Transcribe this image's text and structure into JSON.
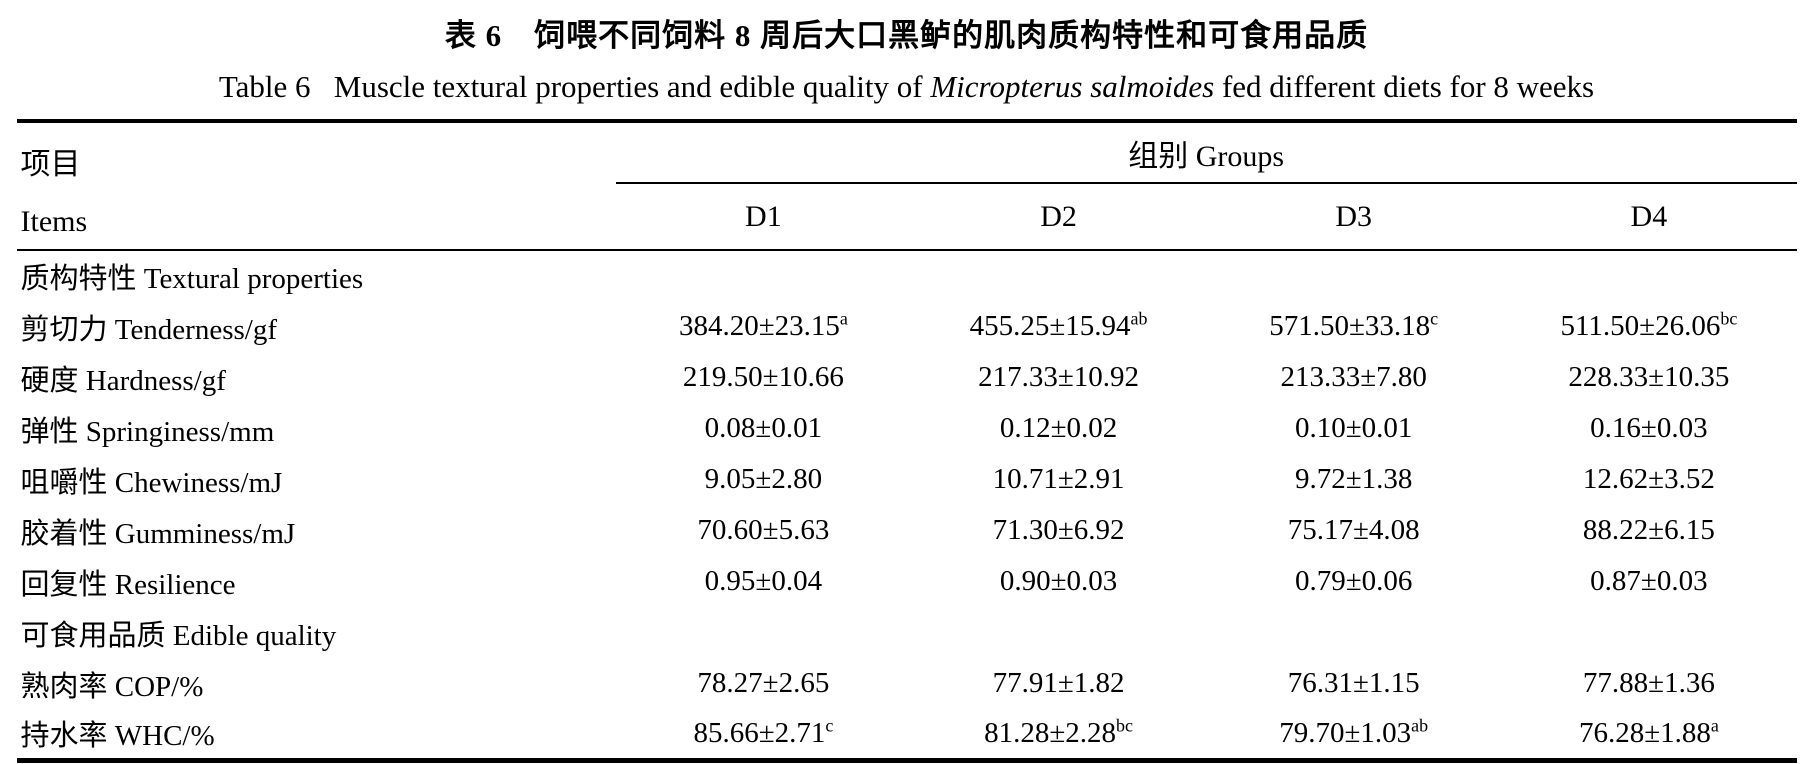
{
  "title": {
    "zh": "表 6　饲喂不同饲料 8 周后大口黑鲈的肌肉质构特性和可食用品质",
    "en_prefix": "Table 6   Muscle textural properties and edible quality of ",
    "en_species": "Micropterus salmoides",
    "en_suffix": " fed different diets for 8 weeks"
  },
  "table": {
    "header": {
      "items_zh": "项目",
      "items_en": "Items",
      "groups_label": "组别 Groups",
      "columns": [
        "D1",
        "D2",
        "D3",
        "D4"
      ]
    },
    "rows": [
      {
        "kind": "section",
        "label": "质构特性 Textural properties"
      },
      {
        "kind": "data",
        "label": "剪切力 Tenderness/gf",
        "values": [
          {
            "v": "384.20±23.15",
            "sup": "a"
          },
          {
            "v": "455.25±15.94",
            "sup": "ab"
          },
          {
            "v": "571.50±33.18",
            "sup": "c"
          },
          {
            "v": "511.50±26.06",
            "sup": "bc"
          }
        ]
      },
      {
        "kind": "data",
        "label": "硬度 Hardness/gf",
        "values": [
          {
            "v": "219.50±10.66",
            "sup": ""
          },
          {
            "v": "217.33±10.92",
            "sup": ""
          },
          {
            "v": "213.33±7.80",
            "sup": ""
          },
          {
            "v": "228.33±10.35",
            "sup": ""
          }
        ]
      },
      {
        "kind": "data",
        "label": "弹性 Springiness/mm",
        "values": [
          {
            "v": "0.08±0.01",
            "sup": ""
          },
          {
            "v": "0.12±0.02",
            "sup": ""
          },
          {
            "v": "0.10±0.01",
            "sup": ""
          },
          {
            "v": "0.16±0.03",
            "sup": ""
          }
        ]
      },
      {
        "kind": "data",
        "label": "咀嚼性 Chewiness/mJ",
        "values": [
          {
            "v": "9.05±2.80",
            "sup": ""
          },
          {
            "v": "10.71±2.91",
            "sup": ""
          },
          {
            "v": "9.72±1.38",
            "sup": ""
          },
          {
            "v": "12.62±3.52",
            "sup": ""
          }
        ]
      },
      {
        "kind": "data",
        "label": "胶着性 Gumminess/mJ",
        "values": [
          {
            "v": "70.60±5.63",
            "sup": ""
          },
          {
            "v": "71.30±6.92",
            "sup": ""
          },
          {
            "v": "75.17±4.08",
            "sup": ""
          },
          {
            "v": "88.22±6.15",
            "sup": ""
          }
        ]
      },
      {
        "kind": "data",
        "label": "回复性 Resilience",
        "values": [
          {
            "v": "0.95±0.04",
            "sup": ""
          },
          {
            "v": "0.90±0.03",
            "sup": ""
          },
          {
            "v": "0.79±0.06",
            "sup": ""
          },
          {
            "v": "0.87±0.03",
            "sup": ""
          }
        ]
      },
      {
        "kind": "section",
        "label": "可食用品质 Edible quality"
      },
      {
        "kind": "data",
        "label": "熟肉率 COP/%",
        "values": [
          {
            "v": "78.27±2.65",
            "sup": ""
          },
          {
            "v": "77.91±1.82",
            "sup": ""
          },
          {
            "v": "76.31±1.15",
            "sup": ""
          },
          {
            "v": "77.88±1.36",
            "sup": ""
          }
        ]
      },
      {
        "kind": "data",
        "label": "持水率 WHC/%",
        "values": [
          {
            "v": "85.66±2.71",
            "sup": "c"
          },
          {
            "v": "81.28±2.28",
            "sup": "bc"
          },
          {
            "v": "79.70±1.03",
            "sup": "ab"
          },
          {
            "v": "76.28±1.88",
            "sup": "a"
          }
        ]
      }
    ]
  }
}
